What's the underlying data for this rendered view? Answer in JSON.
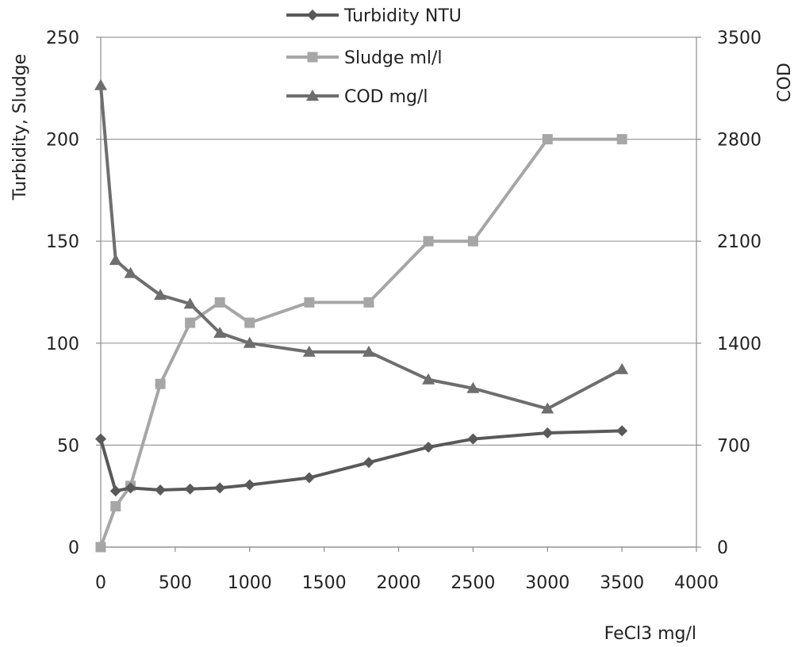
{
  "chart_data": {
    "type": "line",
    "xlabel": "FeCl3  mg/l",
    "ylabel_left": "Turbidity, Sludge",
    "ylabel_right": "COD",
    "xlim": [
      0,
      4000
    ],
    "ylim_left": [
      0,
      250
    ],
    "ylim_right": [
      0,
      3500
    ],
    "x_ticks": [
      "0",
      "500",
      "1000",
      "1500",
      "2000",
      "2500",
      "3000",
      "3500",
      "4000"
    ],
    "y_left_ticks": [
      "0",
      "50",
      "100",
      "150",
      "200",
      "250"
    ],
    "y_right_ticks": [
      "0",
      "700",
      "1400",
      "2100",
      "2800",
      "3500"
    ],
    "grid": "horizontal",
    "legend_position": "top",
    "series": [
      {
        "name": "Turbidity NTU",
        "axis": "left",
        "marker": "diamond",
        "color": "#595959",
        "x": [
          0,
          100,
          200,
          400,
          600,
          800,
          1000,
          1400,
          1800,
          2200,
          2500,
          3000,
          3500
        ],
        "values": [
          53,
          27.5,
          29,
          28,
          28.5,
          29,
          30.5,
          34,
          41.5,
          49,
          53,
          56,
          57
        ]
      },
      {
        "name": "Sludge ml/l",
        "axis": "left",
        "marker": "square",
        "color": "#a6a6a6",
        "x": [
          0,
          100,
          200,
          400,
          600,
          800,
          1000,
          1400,
          1800,
          2200,
          2500,
          3000,
          3500
        ],
        "values": [
          0,
          20,
          30,
          80,
          110,
          120,
          110,
          120,
          120,
          150,
          150,
          200,
          200
        ]
      },
      {
        "name": "COD mg/l",
        "axis": "right",
        "marker": "triangle",
        "color": "#6e6e6e",
        "x": [
          0,
          100,
          200,
          400,
          600,
          800,
          1000,
          1400,
          1800,
          2200,
          2500,
          3000,
          3500
        ],
        "values": [
          3170,
          1970,
          1880,
          1730,
          1670,
          1470,
          1400,
          1340,
          1340,
          1150,
          1090,
          950,
          1220
        ]
      }
    ]
  }
}
